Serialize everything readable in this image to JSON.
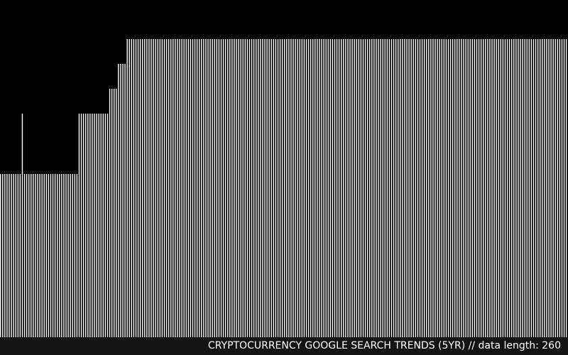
{
  "caption": "CRYPTOCURRENCY GOOGLE SEARCH TRENDS (5YR) // data length: 260",
  "colors": {
    "background": "#000000",
    "bar": "#ffffff",
    "caption_band": "#141414"
  },
  "chart_data": {
    "type": "bar",
    "title": "CRYPTOCURRENCY GOOGLE SEARCH TRENDS (5YR)",
    "data_length": 260,
    "ylim": [
      0,
      100
    ],
    "values": [
      51,
      51,
      51,
      51,
      51,
      51,
      51,
      51,
      51,
      51,
      68,
      51,
      51,
      51,
      51,
      51,
      51,
      51,
      51,
      51,
      51,
      51,
      51,
      51,
      51,
      51,
      51,
      51,
      51,
      51,
      51,
      51,
      51,
      51,
      51,
      51,
      68,
      68,
      68,
      68,
      68,
      68,
      68,
      68,
      68,
      68,
      68,
      68,
      68,
      68,
      75,
      75,
      75,
      75,
      82,
      82,
      82,
      82,
      89,
      89,
      89,
      89,
      89,
      89,
      89,
      89,
      89,
      89,
      89,
      89,
      89,
      89,
      89,
      89,
      89,
      89,
      89,
      89,
      89,
      89,
      89,
      89,
      89,
      89,
      89,
      89,
      89,
      89,
      89,
      89,
      89,
      89,
      89,
      89,
      89,
      89,
      89,
      89,
      89,
      89,
      89,
      89,
      89,
      89,
      89,
      89,
      89,
      89,
      89,
      89,
      89,
      89,
      89,
      89,
      89,
      89,
      89,
      89,
      89,
      89,
      89,
      89,
      89,
      89,
      89,
      89,
      89,
      89,
      89,
      89,
      89,
      89,
      89,
      89,
      89,
      89,
      89,
      89,
      89,
      89,
      89,
      89,
      89,
      89,
      89,
      89,
      89,
      89,
      89,
      89,
      89,
      89,
      89,
      89,
      89,
      89,
      89,
      89,
      89,
      89,
      89,
      89,
      89,
      89,
      89,
      89,
      89,
      89,
      89,
      89,
      89,
      89,
      89,
      89,
      89,
      89,
      89,
      89,
      89,
      89,
      89,
      89,
      89,
      89,
      89,
      89,
      89,
      89,
      89,
      89,
      89,
      89,
      89,
      89,
      89,
      89,
      89,
      89,
      89,
      89,
      89,
      89,
      89,
      89,
      89,
      89,
      89,
      89,
      89,
      89,
      89,
      89,
      89,
      89,
      89,
      89,
      89,
      89,
      89,
      89,
      89,
      89,
      89,
      89,
      89,
      89,
      89,
      89,
      89,
      89,
      89,
      89,
      89,
      89,
      89,
      89,
      89,
      89,
      89,
      89,
      89,
      89,
      89,
      89,
      89,
      89,
      89,
      89,
      89,
      89,
      89,
      89,
      89,
      89,
      89,
      89,
      89,
      89,
      89,
      89
    ],
    "grid": false,
    "legend": "none"
  }
}
